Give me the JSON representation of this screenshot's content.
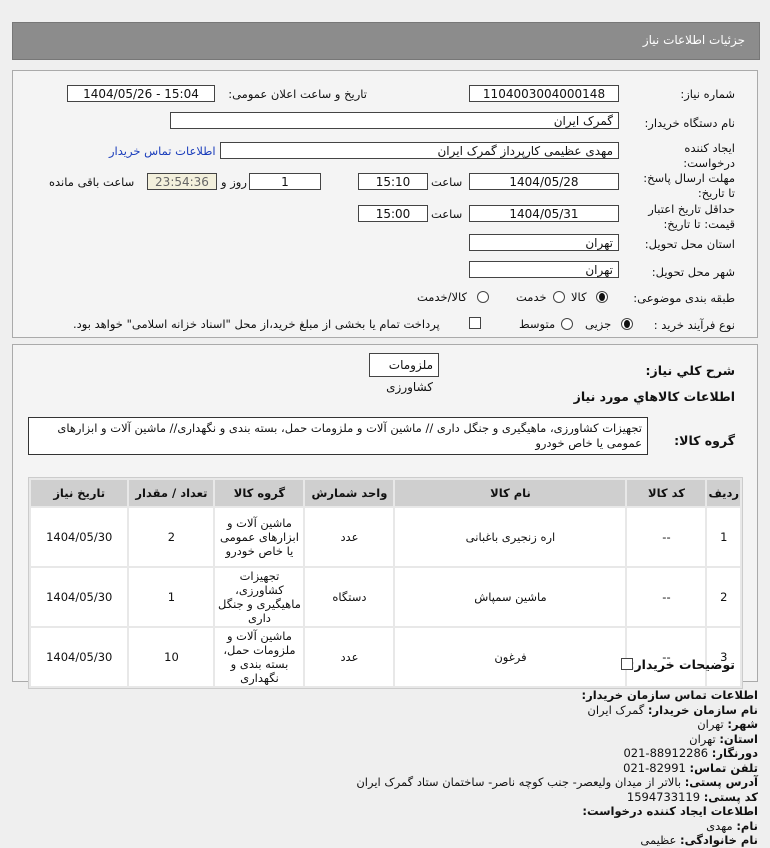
{
  "header": {
    "title": "جزئیات اطلاعات نیاز"
  },
  "form": {
    "need_number_label": "شماره نیاز:",
    "need_number": "1104003004000148",
    "announce_label": "تاریخ و ساعت اعلان عمومی:",
    "announce_value": "1404/05/26 - 15:04",
    "buyer_org_label": "نام دستگاه خریدار:",
    "buyer_org": "گمرک ایران",
    "creator_label": "ایجاد کننده درخواست:",
    "creator": "مهدی عظیمی کارپرداز گمرک ایران",
    "contact_link": "اطلاعات تماس خریدار",
    "deadline_label": "مهلت ارسال پاسخ: تا تاریخ:",
    "deadline_date": "1404/05/28",
    "time_label": "ساعت",
    "deadline_time": "15:10",
    "days": "1",
    "days_label": "روز و",
    "remaining": "23:54:36",
    "remaining_label": "ساعت باقی مانده",
    "validity_label": "حداقل تاریخ اعتبار قیمت: تا تاریخ:",
    "validity_date": "1404/05/31",
    "validity_time": "15:00",
    "province_label": "استان محل تحویل:",
    "province": "تهران",
    "city_label": "شهر محل تحویل:",
    "city": "تهران",
    "category_label": "طبقه بندی موضوعی:",
    "category_options": [
      "کالا",
      "خدمت",
      "کالا/خدمت"
    ],
    "category_selected": "کالا",
    "process_label": "نوع فرآیند خرید :",
    "process_options": [
      "جزیی",
      "متوسط"
    ],
    "process_selected": "جزیی",
    "payment_note": "پرداخت تمام یا بخشی از مبلغ خرید،از محل \"اسناد خزانه اسلامی\" خواهد بود."
  },
  "details": {
    "summary_label": "شرح کلي نياز:",
    "summary": "ملزومات کشاورزی",
    "goods_title": "اطلاعات کالاهاي مورد نياز",
    "group_label": "گروه کالا:",
    "group_value": "تجهیزات کشاورزی، ماهیگیری و جنگل داری // ماشین آلات و ملزومات حمل، بسته بندی و نگهداری// ماشین آلات و ابزارهای عمومی یا خاص خودرو",
    "columns": [
      "ردیف",
      "کد کالا",
      "نام کالا",
      "واحد شمارش",
      "گروه کالا",
      "تعداد / مقدار",
      "تاریخ نیاز"
    ],
    "rows": [
      [
        "1",
        "--",
        "اره زنجیری باغبانی",
        "عدد",
        "ماشین آلات و ابزارهای عمومی یا خاص خودرو",
        "2",
        "1404/05/30"
      ],
      [
        "2",
        "--",
        "ماشین سمپاش",
        "دستگاه",
        "تجهیزات کشاورزی، ماهیگیری و جنگل داری",
        "1",
        "1404/05/30"
      ],
      [
        "3",
        "--",
        "فرغون",
        "عدد",
        "ماشین آلات و ملزومات حمل، بسته بندی و نگهداری",
        "10",
        "1404/05/30"
      ]
    ],
    "buyer_notes_label": "توضیحات خریدار:"
  },
  "contact": {
    "title": "اطلاعات تماس سازمان خریدار:",
    "items": [
      {
        "k": "نام سازمان خریدار:",
        "v": "گمرک ایران"
      },
      {
        "k": "شهر:",
        "v": "تهران"
      },
      {
        "k": "استان:",
        "v": "تهران"
      },
      {
        "k": "دورنگار:",
        "v": "88912286-021"
      },
      {
        "k": "تلفن تماس:",
        "v": "82991-021"
      },
      {
        "k": "آدرس پستی:",
        "v": "بالاتر از میدان ولیعصر- جنب کوچه ناصر- ساختمان ستاد گمرک ایران"
      },
      {
        "k": "کد پستی:",
        "v": "1594733119"
      }
    ],
    "creator_title": "اطلاعات ایجاد کننده درخواست:",
    "creator_items": [
      {
        "k": "نام:",
        "v": "مهدی"
      },
      {
        "k": "نام خانوادگی:",
        "v": "عظیمی"
      }
    ]
  }
}
